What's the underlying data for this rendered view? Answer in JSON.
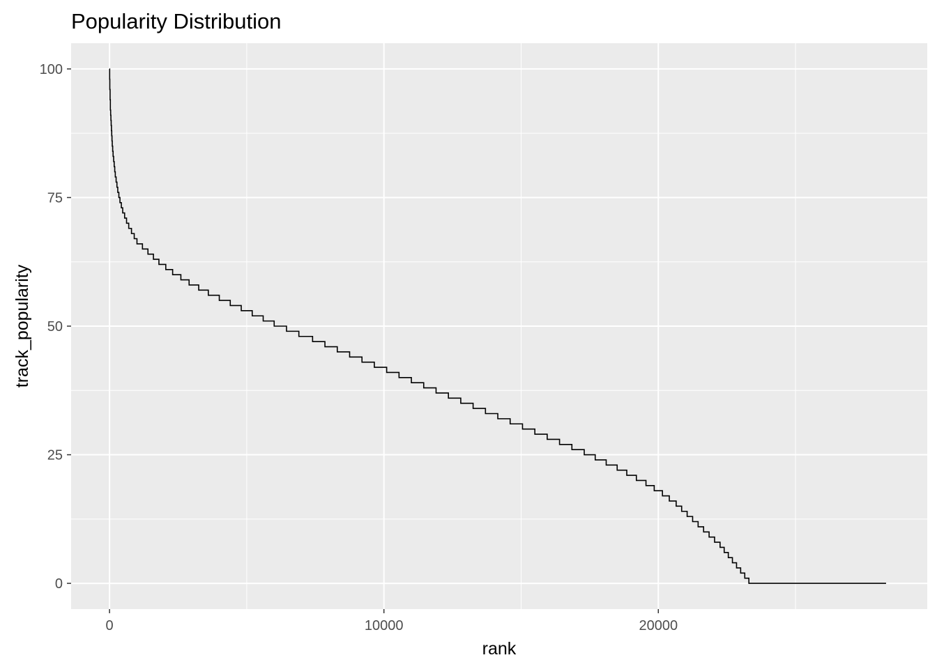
{
  "chart_data": {
    "type": "line",
    "title": "Popularity Distribution",
    "xlabel": "rank",
    "ylabel": "track_popularity",
    "xlim": [
      -1400,
      29800
    ],
    "ylim": [
      -5,
      105
    ],
    "x_ticks": [
      0,
      10000,
      20000
    ],
    "x_tick_labels": [
      "0",
      "10000",
      "20000"
    ],
    "y_ticks": [
      0,
      25,
      50,
      75,
      100
    ],
    "y_tick_labels": [
      "0",
      "25",
      "50",
      "75",
      "100"
    ],
    "grid": true,
    "panel_background": "#ebebeb",
    "line_color": "#000000",
    "series": [
      {
        "x": [
          0,
          5,
          10,
          20,
          30,
          40,
          50,
          60,
          70,
          80,
          90,
          100,
          115,
          130,
          150,
          170,
          190,
          210,
          240,
          270,
          300,
          340,
          380,
          430,
          480,
          550,
          620,
          700,
          800,
          900,
          1000,
          1200,
          1400,
          1600,
          1800,
          2050,
          2300,
          2600,
          2900,
          3250,
          3600,
          4000,
          4400,
          4800,
          5200,
          5600,
          6000,
          6450,
          6900,
          7400,
          7850,
          8300,
          8750,
          9200,
          9650,
          10100,
          10550,
          11000,
          11450,
          11900,
          12350,
          12800,
          13250,
          13700,
          14150,
          14600,
          15050,
          15500,
          15950,
          16400,
          16850,
          17300,
          17700,
          18100,
          18500,
          18850,
          19200,
          19550,
          19850,
          20150,
          20400,
          20650,
          20850,
          21050,
          21250,
          21450,
          21650,
          21850,
          22050,
          22250,
          22400,
          22550,
          22700,
          22850,
          23000,
          23150,
          23300,
          23450,
          23600,
          23750,
          23900,
          24050,
          24200,
          24400,
          24600,
          24800,
          25100,
          25600,
          25800,
          28300
        ],
        "y": [
          100,
          98,
          96,
          94,
          92,
          91,
          90,
          89,
          88,
          87,
          86,
          85,
          84,
          83,
          82,
          81,
          80,
          79,
          78,
          77,
          76,
          75,
          74,
          73,
          72,
          71,
          70,
          69,
          68,
          67,
          66,
          65,
          64,
          63,
          62,
          61,
          60,
          59,
          58,
          57,
          56,
          55,
          54,
          53,
          52,
          51,
          50,
          49,
          48,
          47,
          46,
          45,
          44,
          43,
          42,
          41,
          40,
          39,
          38,
          37,
          36,
          35,
          34,
          33,
          32,
          31,
          30,
          29,
          28,
          27,
          26,
          25,
          24,
          23,
          22,
          21,
          20,
          19,
          18,
          17,
          16,
          15,
          14,
          13,
          12,
          11,
          10,
          9,
          8,
          7,
          6,
          5,
          4,
          3,
          2,
          1,
          0,
          0,
          0,
          0,
          0,
          0,
          0,
          0,
          0,
          0,
          0,
          0,
          0,
          0
        ]
      }
    ]
  }
}
